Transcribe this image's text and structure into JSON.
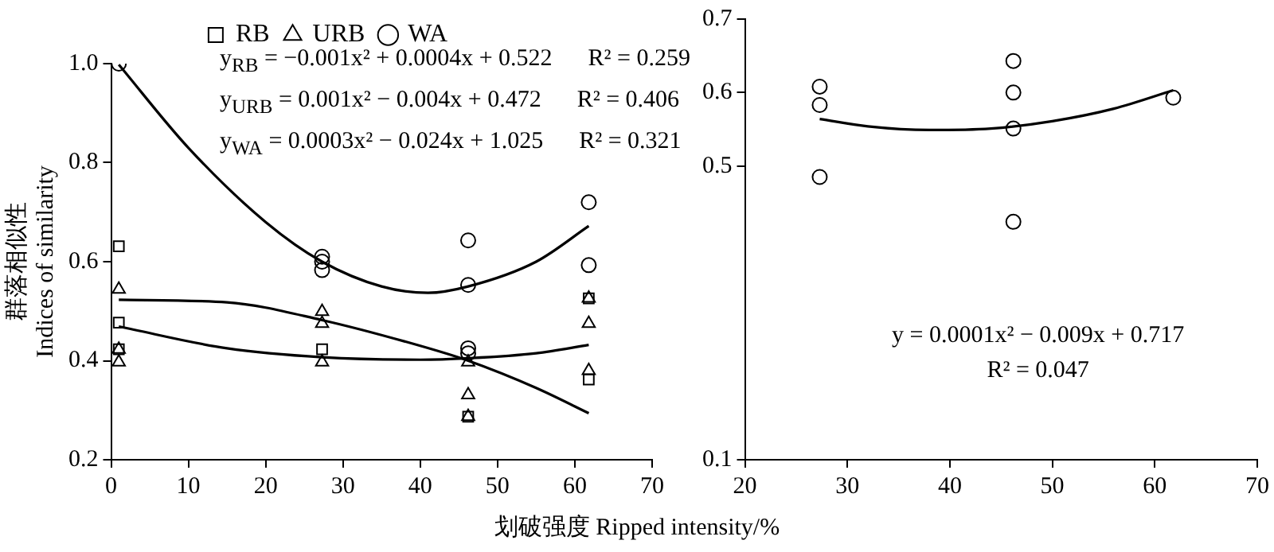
{
  "chart_data": [
    {
      "type": "scatter",
      "xlabel": "划破强度 Ripped intensity/%",
      "ylabel": "群落相似性\nIndices of similarity",
      "xlim": [
        0,
        70
      ],
      "xticks": [
        0,
        10,
        20,
        30,
        40,
        50,
        60,
        70
      ],
      "ylim": [
        0.2,
        1.0
      ],
      "yticks": [
        0.2,
        0.4,
        0.6,
        0.8,
        {
          "value": 1.0,
          "label": "1.0"
        }
      ],
      "grid": false,
      "legend": "top",
      "annotations": [
        "y$_{RB}$ = −0.001x² + 0.0004x + 0.522      R² = 0.259",
        "y$_{URB}$ = 0.001x² − 0.004x + 0.472      R² = 0.406",
        "y$_{WA}$ = 0.0003x² − 0.024x + 1.025      R² = 0.321"
      ],
      "series": [
        {
          "name": "RB",
          "type": "scatter",
          "marker": "square",
          "color": "#000000",
          "x": [
            1,
            1,
            1,
            27.3,
            46.2,
            61.8,
            61.8
          ],
          "values": [
            0.631,
            0.477,
            0.423,
            0.423,
            0.287,
            0.526,
            0.362
          ]
        },
        {
          "name": "URB",
          "type": "scatter",
          "marker": "triangle",
          "color": "#000000",
          "x": [
            1,
            1,
            1,
            27.3,
            27.3,
            27.3,
            46.2,
            46.2,
            46.2,
            61.8,
            61.8,
            61.8
          ],
          "values": [
            0.544,
            0.423,
            0.397,
            0.499,
            0.475,
            0.397,
            0.397,
            0.331,
            0.287,
            0.526,
            0.475,
            0.38
          ]
        },
        {
          "name": "WA",
          "type": "scatter",
          "marker": "circle",
          "color": "#000000",
          "x": [
            1,
            27.3,
            27.3,
            27.3,
            46.2,
            46.2,
            46.2,
            46.2,
            61.8,
            61.8
          ],
          "values": [
            1.0,
            0.61,
            0.6,
            0.583,
            0.643,
            0.553,
            0.425,
            0.415,
            0.72,
            0.593
          ]
        },
        {
          "type": "line",
          "marker": "none",
          "color": "#000000",
          "x": [
            1,
            10,
            20,
            27.3,
            35,
            41,
            46.2,
            55,
            61.8
          ],
          "values": [
            0.998,
            0.83,
            0.68,
            0.6,
            0.55,
            0.537,
            0.55,
            0.6,
            0.672
          ]
        },
        {
          "type": "line",
          "marker": "none",
          "color": "#000000",
          "x": [
            1,
            15,
            27.3,
            40,
            46.2,
            55,
            61.8
          ],
          "values": [
            0.523,
            0.518,
            0.482,
            0.43,
            0.4,
            0.345,
            0.294
          ]
        },
        {
          "type": "line",
          "marker": "none",
          "color": "#000000",
          "x": [
            1,
            15,
            27.3,
            40,
            46.2,
            55,
            61.8
          ],
          "values": [
            0.469,
            0.425,
            0.407,
            0.402,
            0.405,
            0.415,
            0.432
          ]
        }
      ]
    },
    {
      "type": "scatter",
      "xlim": [
        20,
        70
      ],
      "xticks": [
        20,
        30,
        40,
        50,
        60,
        70
      ],
      "ylim": [
        0.1,
        0.7
      ],
      "yticks": [
        0.1,
        0.5,
        0.6,
        0.7
      ],
      "grid": false,
      "annotations": [
        "y = 0.0001x² − 0.009x + 0.717",
        "R² = 0.047"
      ],
      "series": [
        {
          "type": "scatter",
          "marker": "circle",
          "color": "#000000",
          "x": [
            27.3,
            27.3,
            27.3,
            46.2,
            46.2,
            46.2,
            46.2,
            61.8
          ],
          "values": [
            0.608,
            0.583,
            0.485,
            0.643,
            0.6,
            0.551,
            0.424,
            0.593
          ]
        },
        {
          "type": "line",
          "marker": "none",
          "color": "#000000",
          "x": [
            27.3,
            32,
            38,
            44,
            50,
            56,
            61.8
          ],
          "values": [
            0.564,
            0.554,
            0.549,
            0.551,
            0.561,
            0.578,
            0.603
          ]
        }
      ]
    }
  ]
}
